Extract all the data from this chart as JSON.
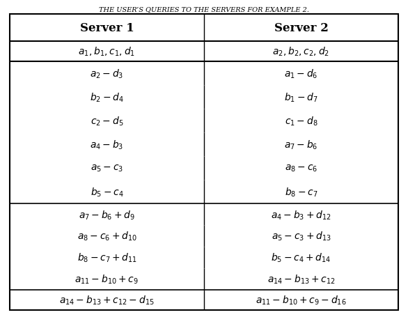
{
  "title": "THE USER’S QUERIES TO THE SERVERS FOR EXAMPLE 2.",
  "col_headers": [
    "Server 1",
    "Server 2"
  ],
  "row1_s1": "$a_1, b_1, c_1, d_1$",
  "row1_s2": "$a_2, b_2, c_2, d_2$",
  "sec2": [
    [
      "$a_2 - d_3$",
      "$a_1 - d_6$"
    ],
    [
      "$b_2 - d_4$",
      "$b_1 - d_7$"
    ],
    [
      "$c_2 - d_5$",
      "$c_1 - d_8$"
    ],
    [
      "$a_4 - b_3$",
      "$a_7 - b_6$"
    ],
    [
      "$a_5 - c_3$",
      "$a_8 - c_6$"
    ],
    [
      "$b_5 - c_4$",
      "$b_8 - c_7$"
    ]
  ],
  "sec3": [
    [
      "$a_7 - b_6 + d_9$",
      "$a_4 - b_3 + d_{12}$"
    ],
    [
      "$a_8 - c_6 + d_{10}$",
      "$a_5 - c_3 + d_{13}$"
    ],
    [
      "$b_8 - c_7 + d_{11}$",
      "$b_5 - c_4 + d_{14}$"
    ],
    [
      "$a_{11} - b_{10} + c_9$",
      "$a_{14} - b_{13} + c_{12}$"
    ]
  ],
  "last_s1": "$a_{14} - b_{13} + c_{12} - d_{15}$",
  "last_s2": "$a_{11} - b_{10} + c_9 - d_{16}$",
  "header_fontsize": 12,
  "cell_fontsize": 10,
  "title_fontsize": 7
}
